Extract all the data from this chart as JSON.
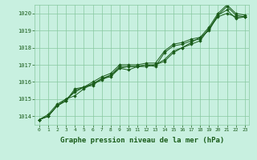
{
  "background_color": "#c8f0e0",
  "plot_bg_color": "#c8f0e0",
  "grid_color": "#88c8a0",
  "line_color": "#1a5c1a",
  "marker_color": "#1a5c1a",
  "title": "Graphe pression niveau de la mer (hPa)",
  "title_fontsize": 7,
  "title_color": "#1a5c1a",
  "xlim": [
    -0.5,
    23.5
  ],
  "ylim": [
    1013.5,
    1020.5
  ],
  "yticks": [
    1014,
    1015,
    1016,
    1017,
    1018,
    1019,
    1020
  ],
  "xticks": [
    0,
    1,
    2,
    3,
    4,
    5,
    6,
    7,
    8,
    9,
    10,
    11,
    12,
    13,
    14,
    15,
    16,
    17,
    18,
    19,
    20,
    21,
    22,
    23
  ],
  "series": [
    [
      1013.8,
      1014.0,
      1014.6,
      1014.9,
      1015.5,
      1015.7,
      1015.8,
      1016.2,
      1016.3,
      1016.8,
      1016.9,
      1016.9,
      1017.0,
      1017.0,
      1017.2,
      1017.7,
      1018.0,
      1018.2,
      1018.4,
      1019.1,
      1019.8,
      1020.0,
      1019.8,
      1019.8
    ],
    [
      1013.8,
      1014.0,
      1014.6,
      1015.0,
      1015.2,
      1015.6,
      1015.9,
      1016.1,
      1016.4,
      1016.8,
      1016.7,
      1016.9,
      1016.9,
      1017.0,
      1017.3,
      1017.8,
      1018.0,
      1018.3,
      1018.6,
      1019.0,
      1019.9,
      1020.2,
      1019.7,
      1019.8
    ],
    [
      1013.8,
      1014.0,
      1014.6,
      1014.9,
      1015.6,
      1015.7,
      1015.9,
      1016.2,
      1016.4,
      1016.9,
      1016.9,
      1016.9,
      1017.0,
      1016.9,
      1017.7,
      1018.1,
      1018.2,
      1018.4,
      1018.5,
      1019.1,
      1019.9,
      1020.4,
      1019.9,
      1019.8
    ],
    [
      1013.8,
      1014.1,
      1014.7,
      1015.0,
      1015.4,
      1015.7,
      1016.0,
      1016.3,
      1016.5,
      1017.0,
      1017.0,
      1017.0,
      1017.1,
      1017.1,
      1017.8,
      1018.2,
      1018.3,
      1018.5,
      1018.6,
      1019.2,
      1020.0,
      1020.5,
      1020.0,
      1019.9
    ]
  ]
}
